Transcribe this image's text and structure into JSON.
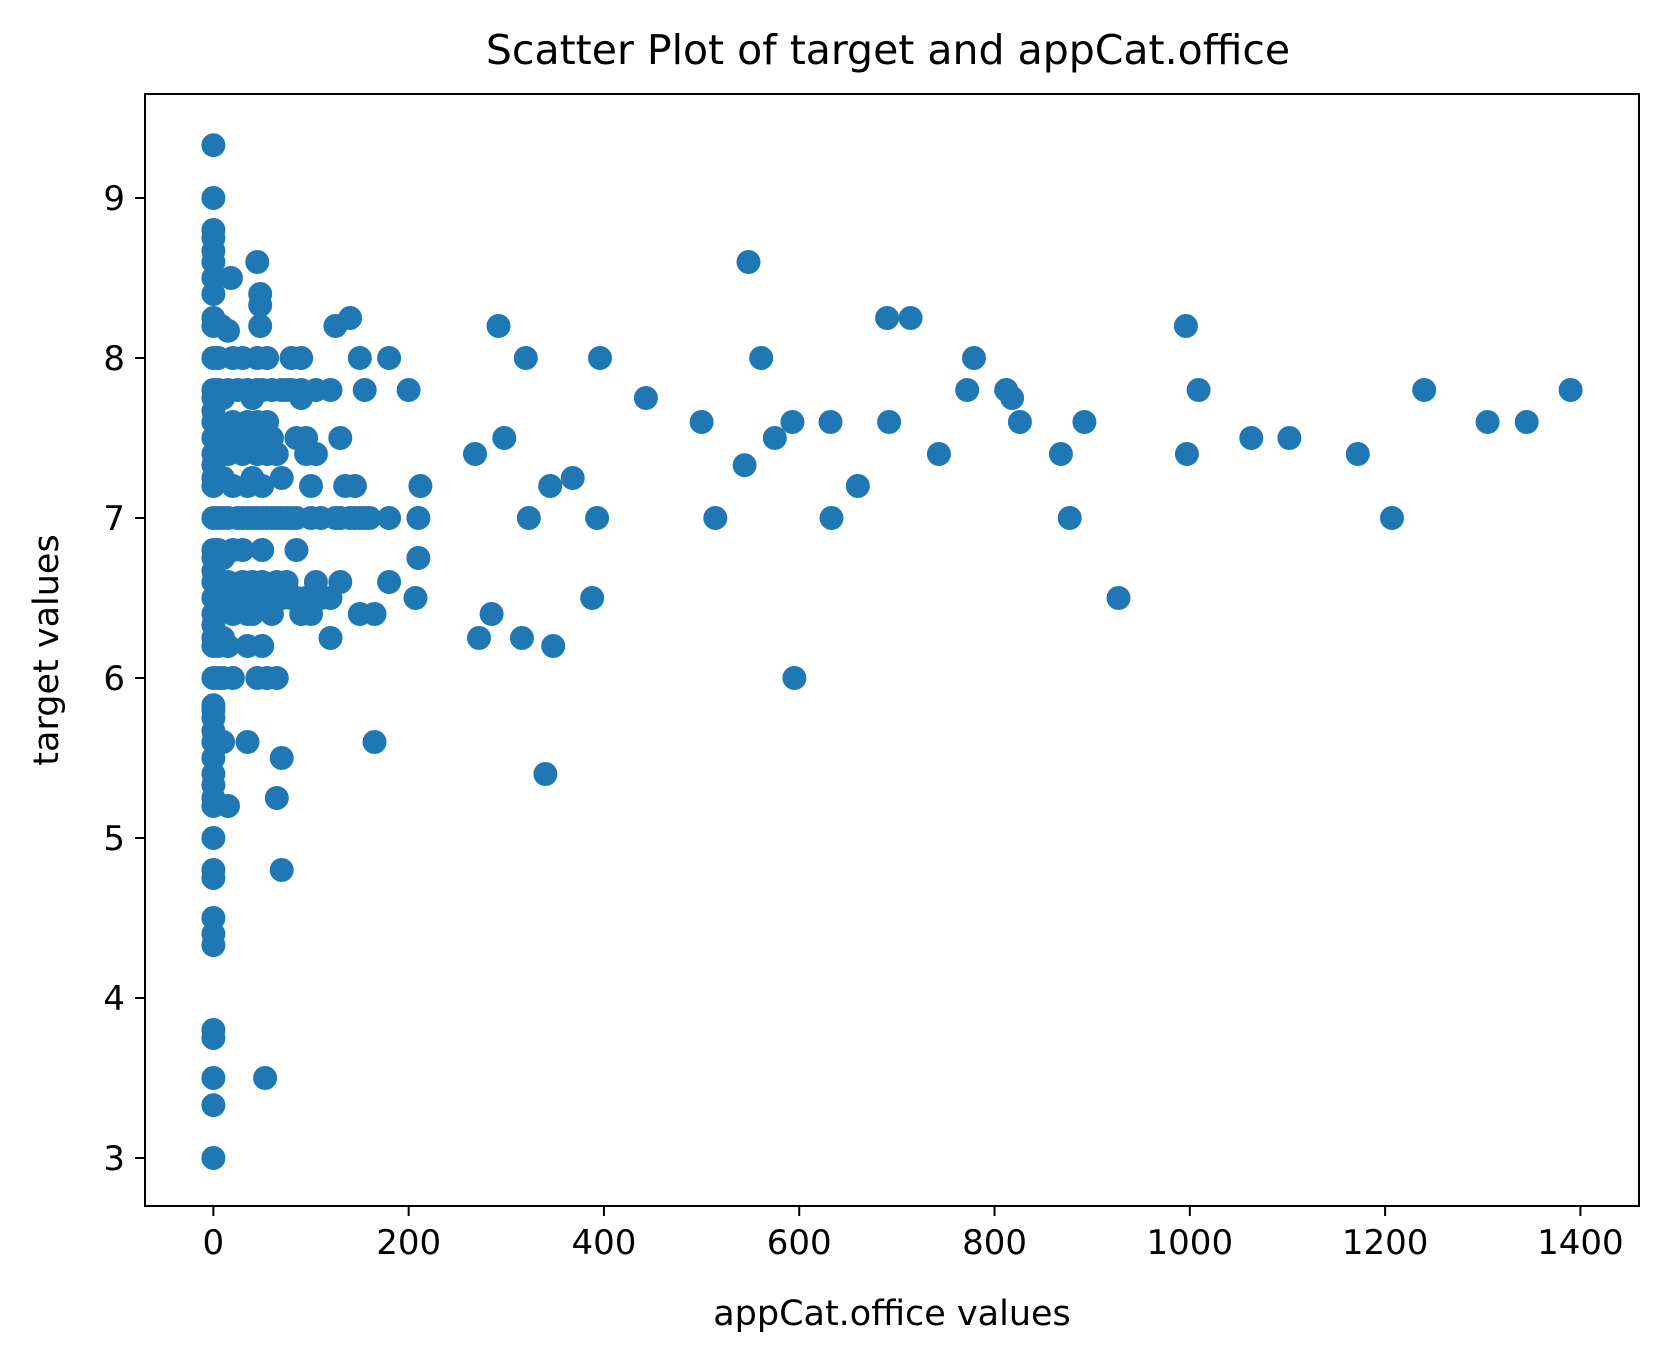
{
  "chart_data": {
    "type": "scatter",
    "title": "Scatter Plot of target and appCat.office",
    "xlabel": "appCat.office values",
    "ylabel": "target values",
    "xlim": [
      -70,
      1460
    ],
    "ylim": [
      2.7,
      9.65
    ],
    "xticks": [
      0,
      200,
      400,
      600,
      800,
      1000,
      1200,
      1400
    ],
    "yticks": [
      3,
      4,
      5,
      6,
      7,
      8,
      9
    ],
    "grid": false,
    "marker_color": "#1f77b4",
    "points": [
      [
        0,
        9.33
      ],
      [
        0,
        9.0
      ],
      [
        0,
        8.8
      ],
      [
        0,
        8.75
      ],
      [
        0,
        8.67
      ],
      [
        0,
        8.6
      ],
      [
        0,
        8.5
      ],
      [
        0,
        8.4
      ],
      [
        0,
        8.25
      ],
      [
        0,
        8.2
      ],
      [
        0,
        8.0
      ],
      [
        0,
        7.8
      ],
      [
        0,
        7.75
      ],
      [
        0,
        7.67
      ],
      [
        0,
        7.6
      ],
      [
        0,
        7.5
      ],
      [
        0,
        7.4
      ],
      [
        0,
        7.33
      ],
      [
        0,
        7.25
      ],
      [
        0,
        7.2
      ],
      [
        0,
        7.0
      ],
      [
        0,
        6.8
      ],
      [
        0,
        6.75
      ],
      [
        0,
        6.67
      ],
      [
        0,
        6.6
      ],
      [
        0,
        6.5
      ],
      [
        0,
        6.4
      ],
      [
        0,
        6.33
      ],
      [
        0,
        6.25
      ],
      [
        0,
        6.2
      ],
      [
        0,
        6.0
      ],
      [
        0,
        5.83
      ],
      [
        0,
        5.8
      ],
      [
        0,
        5.75
      ],
      [
        0,
        5.67
      ],
      [
        0,
        5.6
      ],
      [
        0,
        5.5
      ],
      [
        0,
        5.4
      ],
      [
        0,
        5.33
      ],
      [
        0,
        5.25
      ],
      [
        0,
        5.2
      ],
      [
        0,
        5.0
      ],
      [
        0,
        4.8
      ],
      [
        0,
        4.75
      ],
      [
        0,
        4.5
      ],
      [
        0,
        4.4
      ],
      [
        0,
        4.33
      ],
      [
        0,
        3.8
      ],
      [
        0,
        3.75
      ],
      [
        0,
        3.5
      ],
      [
        0,
        3.33
      ],
      [
        0,
        3.0
      ],
      [
        5,
        8.0
      ],
      [
        5,
        7.8
      ],
      [
        5,
        7.6
      ],
      [
        5,
        7.4
      ],
      [
        5,
        7.0
      ],
      [
        5,
        6.8
      ],
      [
        5,
        6.6
      ],
      [
        5,
        6.4
      ],
      [
        5,
        6.2
      ],
      [
        5,
        6.0
      ],
      [
        8,
        8.2
      ],
      [
        10,
        7.75
      ],
      [
        10,
        7.5
      ],
      [
        10,
        7.25
      ],
      [
        10,
        7.0
      ],
      [
        10,
        6.75
      ],
      [
        10,
        6.5
      ],
      [
        10,
        6.25
      ],
      [
        10,
        6.0
      ],
      [
        10,
        5.6
      ],
      [
        15,
        8.17
      ],
      [
        15,
        7.8
      ],
      [
        15,
        7.4
      ],
      [
        15,
        7.0
      ],
      [
        15,
        6.6
      ],
      [
        15,
        6.2
      ],
      [
        15,
        5.2
      ],
      [
        18,
        8.5
      ],
      [
        20,
        8.0
      ],
      [
        20,
        7.6
      ],
      [
        20,
        7.2
      ],
      [
        20,
        6.8
      ],
      [
        20,
        6.4
      ],
      [
        20,
        6.0
      ],
      [
        25,
        7.8
      ],
      [
        25,
        7.5
      ],
      [
        25,
        7.0
      ],
      [
        25,
        6.5
      ],
      [
        30,
        8.0
      ],
      [
        30,
        7.4
      ],
      [
        30,
        7.0
      ],
      [
        30,
        6.6
      ],
      [
        30,
        6.8
      ],
      [
        35,
        7.8
      ],
      [
        35,
        7.6
      ],
      [
        35,
        7.2
      ],
      [
        35,
        7.0
      ],
      [
        35,
        6.4
      ],
      [
        35,
        6.2
      ],
      [
        35,
        5.6
      ],
      [
        40,
        7.75
      ],
      [
        40,
        7.5
      ],
      [
        40,
        7.25
      ],
      [
        40,
        7.0
      ],
      [
        40,
        6.6
      ],
      [
        40,
        6.4
      ],
      [
        45,
        8.6
      ],
      [
        45,
        8.0
      ],
      [
        45,
        7.8
      ],
      [
        45,
        7.6
      ],
      [
        45,
        7.4
      ],
      [
        45,
        7.0
      ],
      [
        45,
        6.0
      ],
      [
        45,
        6.5
      ],
      [
        48,
        8.4
      ],
      [
        48,
        8.33
      ],
      [
        48,
        8.2
      ],
      [
        50,
        7.8
      ],
      [
        50,
        7.2
      ],
      [
        50,
        7.0
      ],
      [
        50,
        6.8
      ],
      [
        50,
        6.6
      ],
      [
        50,
        6.2
      ],
      [
        53,
        3.5
      ],
      [
        55,
        8.0
      ],
      [
        55,
        7.6
      ],
      [
        55,
        7.4
      ],
      [
        55,
        7.0
      ],
      [
        55,
        6.0
      ],
      [
        55,
        6.5
      ],
      [
        60,
        7.8
      ],
      [
        60,
        7.5
      ],
      [
        60,
        7.0
      ],
      [
        60,
        6.4
      ],
      [
        65,
        7.4
      ],
      [
        65,
        7.0
      ],
      [
        65,
        6.6
      ],
      [
        65,
        6.0
      ],
      [
        65,
        5.25
      ],
      [
        70,
        7.8
      ],
      [
        70,
        7.25
      ],
      [
        70,
        7.0
      ],
      [
        70,
        6.5
      ],
      [
        70,
        5.5
      ],
      [
        70,
        4.8
      ],
      [
        75,
        7.8
      ],
      [
        75,
        6.6
      ],
      [
        75,
        7.0
      ],
      [
        80,
        8.0
      ],
      [
        80,
        7.8
      ],
      [
        80,
        7.0
      ],
      [
        80,
        6.5
      ],
      [
        85,
        7.5
      ],
      [
        85,
        7.0
      ],
      [
        85,
        6.8
      ],
      [
        85,
        6.5
      ],
      [
        90,
        8.0
      ],
      [
        90,
        7.8
      ],
      [
        90,
        7.75
      ],
      [
        90,
        6.4
      ],
      [
        95,
        7.5
      ],
      [
        95,
        7.4
      ],
      [
        95,
        6.5
      ],
      [
        100,
        7.2
      ],
      [
        100,
        7.0
      ],
      [
        100,
        6.4
      ],
      [
        105,
        7.8
      ],
      [
        105,
        7.4
      ],
      [
        105,
        6.6
      ],
      [
        105,
        6.5
      ],
      [
        110,
        7.0
      ],
      [
        110,
        6.5
      ],
      [
        120,
        7.8
      ],
      [
        120,
        6.5
      ],
      [
        120,
        6.25
      ],
      [
        125,
        8.2
      ],
      [
        125,
        7.0
      ],
      [
        130,
        7.5
      ],
      [
        130,
        7.0
      ],
      [
        130,
        6.6
      ],
      [
        135,
        7.2
      ],
      [
        140,
        8.25
      ],
      [
        140,
        7.0
      ],
      [
        145,
        7.2
      ],
      [
        145,
        7.0
      ],
      [
        150,
        8.0
      ],
      [
        150,
        7.0
      ],
      [
        150,
        6.4
      ],
      [
        155,
        7.8
      ],
      [
        155,
        7.0
      ],
      [
        160,
        7.0
      ],
      [
        165,
        6.4
      ],
      [
        165,
        5.6
      ],
      [
        180,
        8.0
      ],
      [
        180,
        7.0
      ],
      [
        180,
        6.6
      ],
      [
        200,
        7.8
      ],
      [
        207,
        6.5
      ],
      [
        210,
        6.75
      ],
      [
        210,
        7.0
      ],
      [
        212,
        7.2
      ],
      [
        268,
        7.4
      ],
      [
        272,
        6.25
      ],
      [
        285,
        6.4
      ],
      [
        292,
        8.2
      ],
      [
        298,
        7.5
      ],
      [
        316,
        6.25
      ],
      [
        320,
        8.0
      ],
      [
        323,
        7.0
      ],
      [
        340,
        5.4
      ],
      [
        345,
        7.2
      ],
      [
        348,
        6.2
      ],
      [
        368,
        7.25
      ],
      [
        388,
        6.5
      ],
      [
        393,
        7.0
      ],
      [
        396,
        8.0
      ],
      [
        443,
        7.75
      ],
      [
        500,
        7.6
      ],
      [
        514,
        7.0
      ],
      [
        544,
        7.33
      ],
      [
        548,
        8.6
      ],
      [
        561,
        8.0
      ],
      [
        575,
        7.5
      ],
      [
        593,
        7.6
      ],
      [
        595,
        6.0
      ],
      [
        632,
        7.6
      ],
      [
        633,
        7.0
      ],
      [
        660,
        7.2
      ],
      [
        690,
        8.25
      ],
      [
        692,
        7.6
      ],
      [
        714,
        8.25
      ],
      [
        743,
        7.4
      ],
      [
        772,
        7.8
      ],
      [
        779,
        8.0
      ],
      [
        812,
        7.8
      ],
      [
        818,
        7.75
      ],
      [
        826,
        7.6
      ],
      [
        868,
        7.4
      ],
      [
        877,
        7.0
      ],
      [
        892,
        7.6
      ],
      [
        927,
        6.5
      ],
      [
        996,
        8.2
      ],
      [
        997,
        7.4
      ],
      [
        1009,
        7.8
      ],
      [
        1063,
        7.5
      ],
      [
        1102,
        7.5
      ],
      [
        1172,
        7.4
      ],
      [
        1207,
        7.0
      ],
      [
        1240,
        7.8
      ],
      [
        1305,
        7.6
      ],
      [
        1345,
        7.6
      ],
      [
        1390,
        7.8
      ]
    ]
  }
}
